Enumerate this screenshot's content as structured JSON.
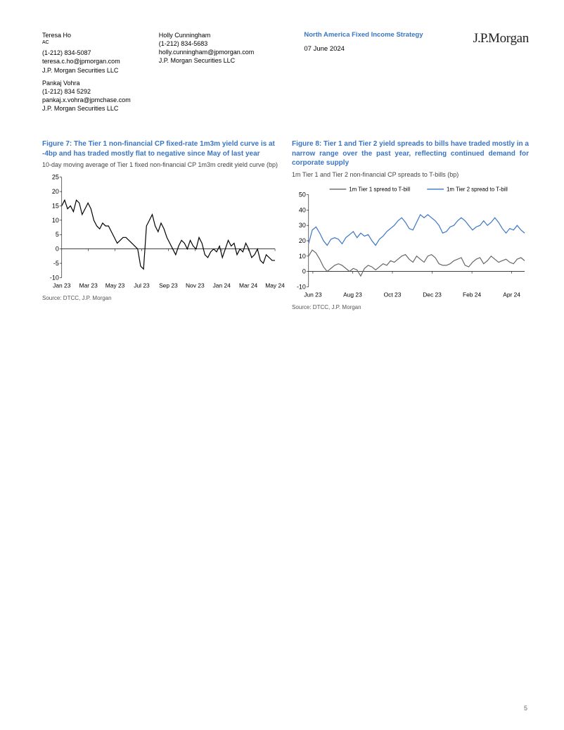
{
  "header": {
    "authors_col1": [
      {
        "name": "Teresa Ho",
        "sup": "AC",
        "phone": "(1-212) 834-5087",
        "email": "teresa.c.ho@jpmorgan.com",
        "org": "J.P. Morgan Securities LLC"
      },
      {
        "name": "Pankaj Vohra",
        "sup": "",
        "phone": "(1-212) 834 5292",
        "email": "pankaj.x.vohra@jpmchase.com",
        "org": "J.P. Morgan Securities LLC"
      }
    ],
    "authors_col2": [
      {
        "name": "Holly Cunningham",
        "sup": "",
        "phone": "(1-212) 834-5683",
        "email": "holly.cunningham@jpmorgan.com",
        "org": "J.P. Morgan Securities LLC"
      }
    ],
    "category": "North America Fixed Income Strategy",
    "date": "07 June 2024",
    "logo": "J.P.Morgan"
  },
  "figure7": {
    "label": "Figure 7:",
    "title": "The Tier 1 non-financial CP fixed-rate 1m3m yield curve is at -4bp and has traded mostly flat to negative since May of last year",
    "subtitle": "10-day moving average of Tier 1 fixed non-financial CP 1m3m credit yield curve (bp)",
    "source": "Source: DTCC, J.P. Morgan",
    "type": "line",
    "ylim": [
      -10,
      25
    ],
    "yticks": [
      -10,
      -5,
      0,
      5,
      10,
      15,
      20,
      25
    ],
    "xticks": [
      "Jan 23",
      "Mar 23",
      "May 23",
      "Jul 23",
      "Sep 23",
      "Nov 23",
      "Jan 24",
      "Mar 24",
      "May 24"
    ],
    "line_color": "#000000",
    "line_width": 1.2,
    "axis_color": "#000000",
    "background_color": "#ffffff",
    "series": [
      15,
      17,
      14,
      15,
      13,
      17,
      16,
      12,
      14,
      16,
      14,
      10,
      8,
      7,
      9,
      8,
      8,
      6,
      4,
      2,
      3,
      4,
      4,
      3,
      2,
      1,
      0,
      -6,
      -7,
      8,
      10,
      12,
      8,
      6,
      9,
      7,
      4,
      2,
      0,
      -2,
      1,
      3,
      2,
      0,
      3,
      1,
      0,
      4,
      2,
      -2,
      -3,
      -1,
      0,
      -1,
      1,
      -3,
      0,
      3,
      1,
      2,
      -2,
      0,
      -1,
      2,
      0,
      -3,
      -2,
      0,
      -4,
      -5,
      -2,
      -3,
      -4,
      -4
    ]
  },
  "figure8": {
    "label": "Figure 8:",
    "title": "Tier 1 and Tier 2 yield spreads to bills have traded mostly in a narrow range over the past year, reflecting continued demand for corporate supply",
    "subtitle": "1m Tier 1 and Tier 2 non-financial CP spreads to T-bills (bp)",
    "source": "Source: DTCC, J.P. Morgan",
    "type": "line",
    "ylim": [
      -10,
      50
    ],
    "yticks": [
      -10,
      0,
      10,
      20,
      30,
      40,
      50
    ],
    "xticks": [
      "Jun 23",
      "Aug 23",
      "Oct 23",
      "Dec 23",
      "Feb 24",
      "Apr 24"
    ],
    "axis_color": "#000000",
    "background_color": "#ffffff",
    "legend": [
      {
        "label": "1m Tier 1 spread to T-bill",
        "color": "#666666"
      },
      {
        "label": "1m Tier 2 spread to T-bill",
        "color": "#3a75c4"
      }
    ],
    "series1_color": "#666666",
    "series2_color": "#3a75c4",
    "line_width": 1.2,
    "series1": [
      10,
      14,
      12,
      8,
      3,
      0,
      2,
      4,
      5,
      4,
      2,
      0,
      2,
      1,
      -3,
      2,
      4,
      3,
      1,
      3,
      5,
      4,
      7,
      6,
      8,
      10,
      11,
      8,
      6,
      10,
      8,
      6,
      10,
      11,
      9,
      5,
      4,
      4,
      5,
      7,
      8,
      9,
      4,
      3,
      6,
      8,
      9,
      5,
      7,
      10,
      8,
      6,
      7,
      8,
      6,
      5,
      8,
      9,
      7
    ],
    "series2": [
      18,
      27,
      29,
      25,
      20,
      17,
      21,
      22,
      21,
      18,
      22,
      24,
      26,
      22,
      25,
      23,
      24,
      20,
      17,
      21,
      23,
      26,
      28,
      30,
      33,
      35,
      32,
      28,
      27,
      32,
      37,
      35,
      37,
      35,
      33,
      30,
      25,
      26,
      29,
      30,
      33,
      35,
      33,
      30,
      27,
      29,
      30,
      33,
      30,
      32,
      35,
      32,
      28,
      25,
      28,
      27,
      30,
      27,
      25
    ]
  },
  "page_number": "5"
}
